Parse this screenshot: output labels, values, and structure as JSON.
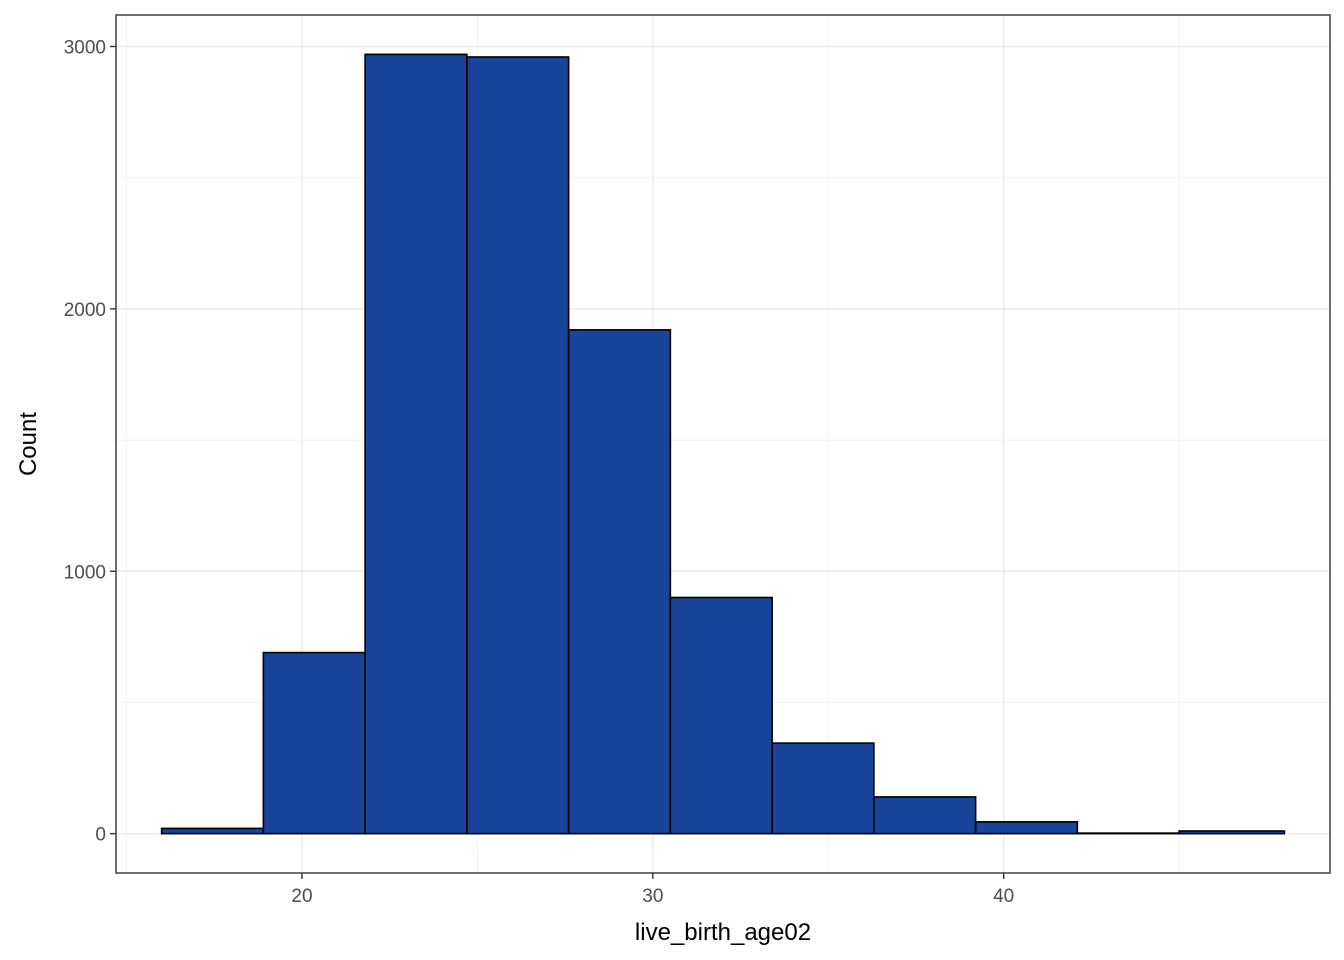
{
  "chart_data": {
    "type": "bar",
    "subtype": "histogram",
    "title": "",
    "xlabel": "live_birth_age02",
    "ylabel": "Count",
    "bin_edges": [
      16.0,
      18.9,
      21.8,
      24.7,
      27.6,
      30.5,
      33.4,
      36.3,
      39.2,
      42.1,
      45.0,
      48.0
    ],
    "values": [
      20,
      690,
      2970,
      2960,
      1920,
      900,
      345,
      140,
      45,
      2,
      10
    ],
    "xlim": [
      14.7,
      49.3
    ],
    "ylim": [
      -150,
      3120
    ],
    "x_ticks": [
      20,
      30,
      40
    ],
    "x_tick_labels": [
      "20",
      "30",
      "40"
    ],
    "y_ticks": [
      0,
      1000,
      2000,
      3000
    ],
    "y_tick_labels": [
      "0",
      "1000",
      "2000",
      "3000"
    ],
    "grid": true,
    "legend": "none",
    "colors": {
      "bar_fill": "#184499",
      "bar_stroke": "#000000",
      "grid_major": "#ebebeb",
      "grid_minor": "#f2f2f2",
      "panel_border": "#333333",
      "tick_text": "#4d4d4d"
    }
  }
}
